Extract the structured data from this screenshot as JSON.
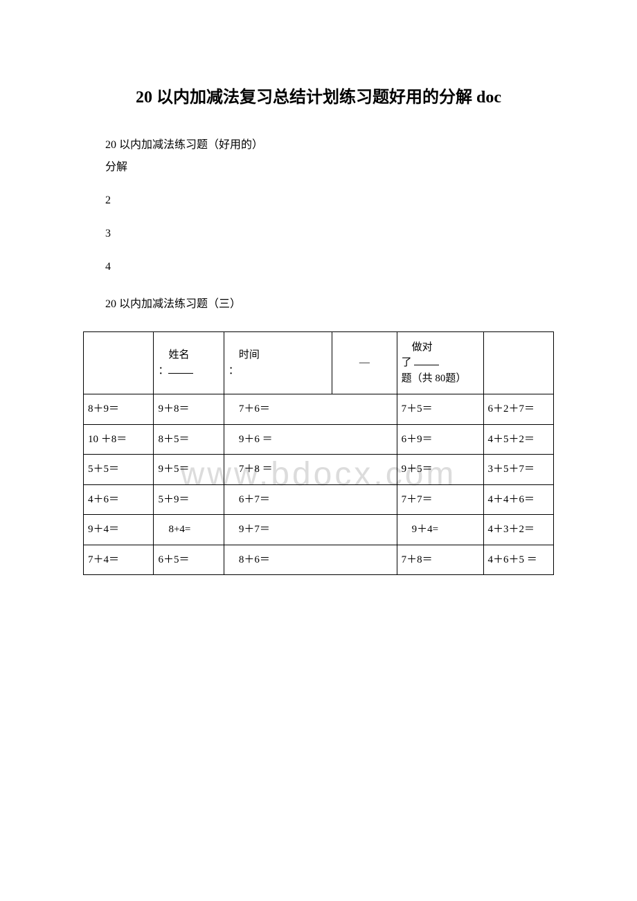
{
  "title": "20 以内加减法复习总结计划练习题好用的分解 doc",
  "intro1": "20 以内加减法练习题（好用的）",
  "intro2": "分解",
  "n2": "2",
  "n3": "3",
  "n4": "4",
  "subTitle": "20 以内加减法练习题（三）",
  "watermark": "www.bdocx.com",
  "hdr": {
    "name_label": "姓名",
    "time_label": "时间",
    "dash": "—",
    "score_prefix": "做对",
    "score_mid": "了",
    "score_suffix": "题（共 80题）"
  },
  "rows": [
    {
      "c1a": "8＋9",
      "c1b": "＝",
      "c2a": "9＋8",
      "c2b": "＝",
      "c3": "7＋6＝",
      "c5a": "7＋5",
      "c5b": "＝",
      "c6a": "6＋2",
      "c6b": "＋7＝"
    },
    {
      "c1a": "10 ＋",
      "c1b": "8＝",
      "c2a": "8＋5",
      "c2b": "＝",
      "c3": "9＋6 ＝",
      "c5a": "6＋9",
      "c5b": "＝",
      "c6a": "4＋5",
      "c6b": "＋2＝"
    },
    {
      "c1a": "5＋5",
      "c1b": "＝",
      "c2a": "9＋5",
      "c2b": "＝",
      "c3": "7＋8 ＝",
      "c5a": "9＋5",
      "c5b": "＝",
      "c6a": "3＋5",
      "c6b": "＋7＝"
    },
    {
      "c1a": "4＋6",
      "c1b": "＝",
      "c2a": "5＋9",
      "c2b": "＝",
      "c3": "6＋7＝",
      "c5a": "7＋7",
      "c5b": "＝",
      "c6a": "4＋4",
      "c6b": "＋6＝"
    },
    {
      "c1a": "9＋",
      "c1b": "4＝",
      "c2a": "8+4=",
      "c2b": "",
      "c3": "9＋7＝",
      "c5a": "9＋4=",
      "c5b": "",
      "c6a": "4＋3",
      "c6b": "＋2＝"
    },
    {
      "c1a": "7＋4",
      "c1b": "＝",
      "c2a": "6＋5",
      "c2b": "＝",
      "c3": "8＋6＝",
      "c5a": "7＋8",
      "c5b": "＝",
      "c6a": "4＋6",
      "c6b": "＋5 ＝"
    }
  ]
}
